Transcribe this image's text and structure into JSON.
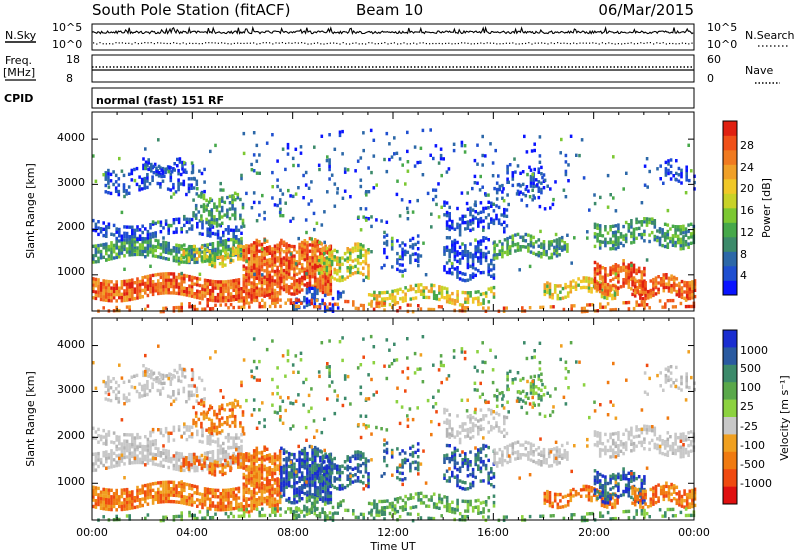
{
  "header": {
    "station": "South Pole Station (fitACF)",
    "beam": "Beam 10",
    "date": "06/Mar/2015"
  },
  "strip_panels": {
    "nsky": {
      "label": "N.Sky",
      "ticks": [
        "10^5",
        "10^0"
      ]
    },
    "nsearch": {
      "label": "N.Search",
      "ticks": [
        "10^5",
        "10^0"
      ]
    },
    "freq": {
      "label_line1": "Freq.",
      "label_line2": "[MHz]",
      "ticks": [
        "18",
        "8"
      ]
    },
    "nave": {
      "label": "Nave",
      "ticks": [
        "60",
        "0"
      ]
    },
    "cpid": {
      "label": "CPID",
      "value": "normal (fast) 151 RF"
    }
  },
  "chart_data": [
    {
      "type": "heatmap",
      "title": "",
      "quantity": "Power",
      "ylabel": "Slant Range [km]",
      "ylim": [
        200,
        4600
      ],
      "yticks": [
        "1000",
        "2000",
        "3000",
        "4000"
      ],
      "colorbar": {
        "label": "Power [dB]",
        "range": [
          0,
          32
        ],
        "ticks": [
          "4",
          "8",
          "12",
          "16",
          "20",
          "24",
          "28"
        ],
        "colors": [
          "#0a14ff",
          "#1f4fd0",
          "#2c68a8",
          "#3c8a6a",
          "#46a84a",
          "#7cc832",
          "#c8d228",
          "#f0c828",
          "#f0a028",
          "#f07a20",
          "#f05018",
          "#e02010"
        ]
      }
    },
    {
      "type": "heatmap",
      "title": "",
      "quantity": "Velocity",
      "ylabel": "Slant Range [km]",
      "ylim": [
        200,
        4600
      ],
      "yticks": [
        "1000",
        "2000",
        "3000",
        "4000"
      ],
      "xlabel": "Time UT",
      "xticks": [
        "00:00",
        "04:00",
        "08:00",
        "12:00",
        "16:00",
        "20:00",
        "00:00"
      ],
      "colorbar": {
        "label": "Velocity [m s⁻¹]",
        "ticks": [
          "1000",
          "500",
          "100",
          "25",
          "-25",
          "-100",
          "-500",
          "-1000"
        ],
        "colors": [
          "#1a2ed0",
          "#2a5aa0",
          "#3c8a6a",
          "#5aa84a",
          "#8cd240",
          "#c8c8c8",
          "#f0a020",
          "#f07a10",
          "#f04a10",
          "#e01010"
        ]
      }
    }
  ]
}
